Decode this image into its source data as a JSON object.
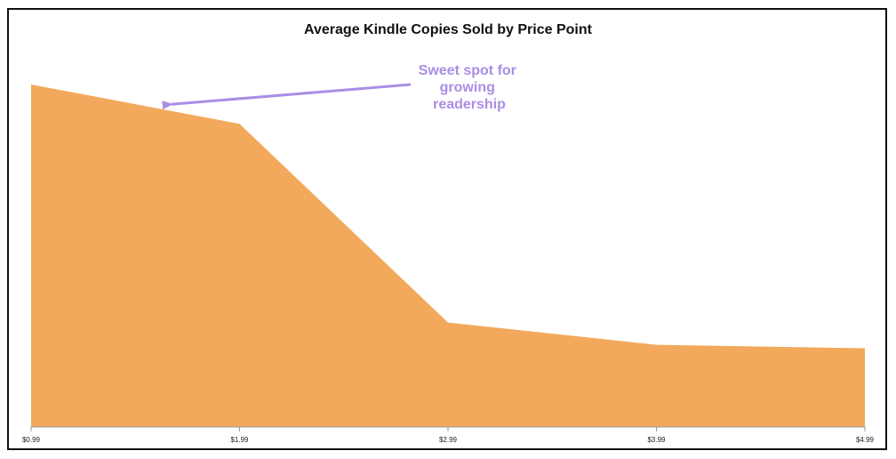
{
  "chart_data": {
    "type": "area",
    "title": "Average Kindle Copies Sold by Price Point",
    "xlabel": "",
    "ylabel": "",
    "categories": [
      "$0.99",
      "$1.99",
      "$2.99",
      "$3.99",
      "$4.99"
    ],
    "values": [
      1.0,
      0.885,
      0.305,
      0.24,
      0.23
    ],
    "ylim": [
      0,
      1.1
    ],
    "grid": false,
    "legend": "none",
    "fill_color": "#f2a95c",
    "annotation": {
      "lines": [
        "Sweet spot for",
        "growing",
        "readership"
      ],
      "color": "#a98ee6",
      "points_to_category": "$0.99",
      "points_to_value": 0.95
    }
  }
}
